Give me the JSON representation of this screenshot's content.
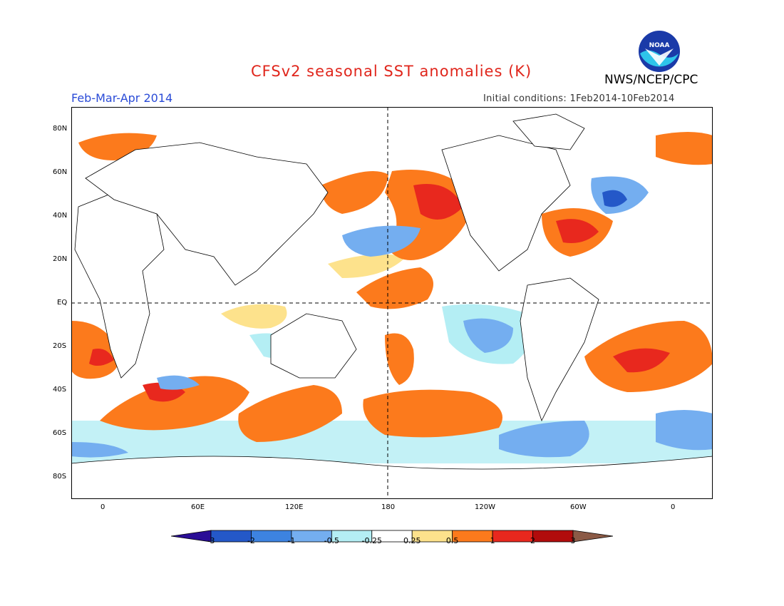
{
  "title": "CFSv2 seasonal SST anomalies (K)",
  "organization": "NWS/NCEP/CPC",
  "logo_text": "NOAA",
  "season": "Feb-Mar-Apr 2014",
  "initial_conditions": "Initial conditions: 1Feb2014-10Feb2014",
  "lat_labels": [
    "80N",
    "60N",
    "40N",
    "20N",
    "EQ",
    "20S",
    "40S",
    "60S",
    "80S"
  ],
  "lon_labels": [
    "0",
    "60E",
    "120E",
    "180",
    "120W",
    "60W",
    "0"
  ],
  "colorbar": {
    "labels": [
      "-3",
      "-2",
      "-1",
      "-0.5",
      "-0.25",
      "0.25",
      "0.5",
      "1",
      "2",
      "3"
    ],
    "colors": [
      "#2a0e96",
      "#2458c8",
      "#3d83e0",
      "#74aef0",
      "#b4eef4",
      "#ffffff",
      "#fde28c",
      "#fc7a1c",
      "#e8281e",
      "#b10c0c",
      "#8b5a46"
    ]
  }
}
